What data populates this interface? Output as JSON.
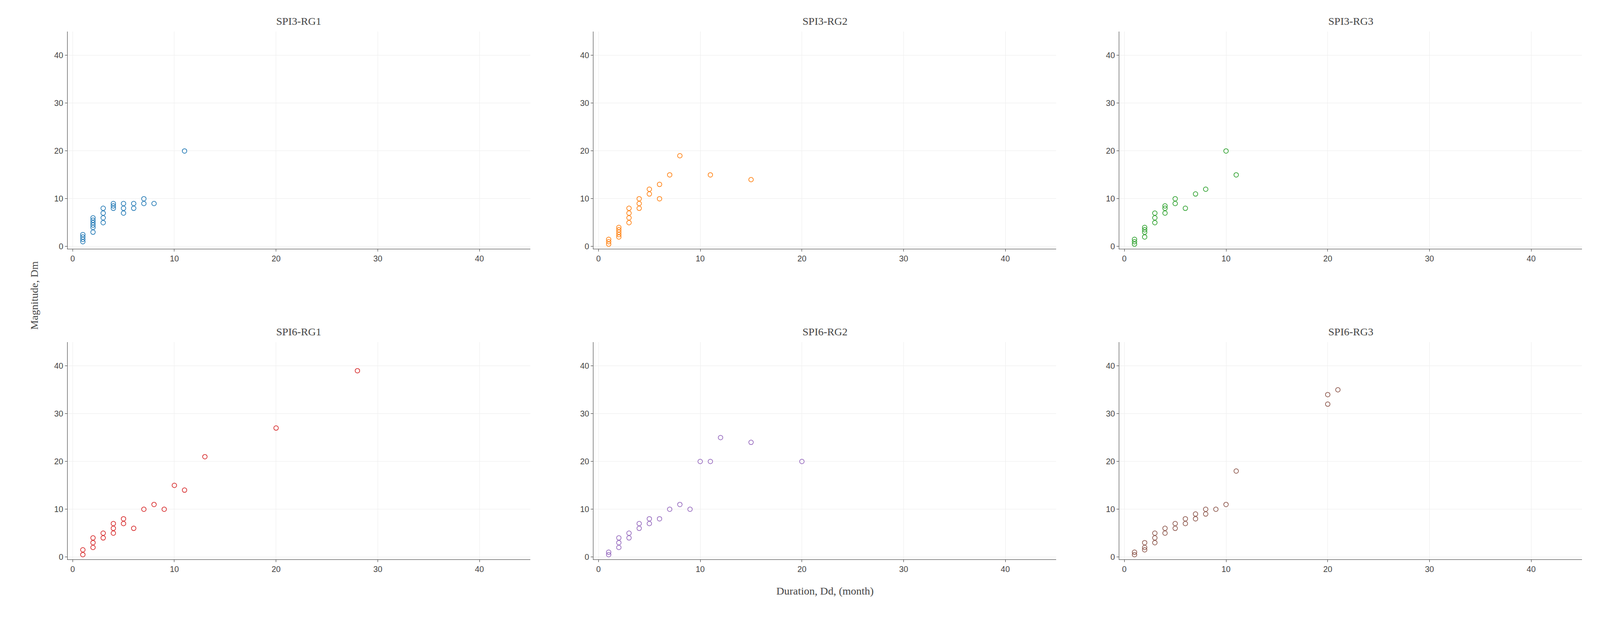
{
  "chart_data": [
    {
      "type": "scatter",
      "title": "SPI3-RG1",
      "x": [
        1,
        1,
        1,
        1,
        2,
        2,
        2,
        2,
        2,
        2,
        3,
        3,
        3,
        3,
        4,
        4,
        4,
        5,
        5,
        5,
        6,
        6,
        7,
        7,
        8,
        11
      ],
      "values": [
        1,
        1.5,
        2,
        2.5,
        3,
        4,
        4.5,
        5,
        5.5,
        6,
        5,
        6,
        7,
        8,
        8,
        8.5,
        9,
        7,
        8,
        9,
        8,
        9,
        9,
        10,
        9,
        20
      ],
      "xlim": [
        -0.5,
        45
      ],
      "ylim": [
        -0.5,
        45
      ],
      "xticks": [
        0,
        10,
        20,
        30,
        40
      ],
      "yticks": [
        0,
        10,
        20,
        30,
        40
      ],
      "marker": "circle-open",
      "grid": true
    },
    {
      "type": "scatter",
      "title": "SPI3-RG2",
      "x": [
        1,
        1,
        1,
        2,
        2,
        2,
        2,
        2,
        3,
        3,
        3,
        3,
        4,
        4,
        4,
        5,
        5,
        6,
        6,
        7,
        8,
        11,
        15
      ],
      "values": [
        0.5,
        1,
        1.5,
        2,
        2.5,
        3,
        3.5,
        4,
        5,
        6,
        7,
        8,
        8,
        9,
        10,
        11,
        12,
        10,
        13,
        15,
        19,
        15,
        14
      ],
      "xlim": [
        -0.5,
        45
      ],
      "ylim": [
        -0.5,
        45
      ],
      "xticks": [
        0,
        10,
        20,
        30,
        40
      ],
      "yticks": [
        0,
        10,
        20,
        30,
        40
      ],
      "marker": "circle-open",
      "grid": true
    },
    {
      "type": "scatter",
      "title": "SPI3-RG3",
      "x": [
        1,
        1,
        1,
        2,
        2,
        2,
        2,
        3,
        3,
        3,
        4,
        4,
        4,
        5,
        5,
        6,
        7,
        8,
        10,
        11
      ],
      "values": [
        0.5,
        1,
        1.5,
        2,
        3,
        3.5,
        4,
        5,
        6,
        7,
        7,
        8,
        8.5,
        9,
        10,
        8,
        11,
        12,
        20,
        15
      ],
      "xlim": [
        -0.5,
        45
      ],
      "ylim": [
        -0.5,
        45
      ],
      "xticks": [
        0,
        10,
        20,
        30,
        40
      ],
      "yticks": [
        0,
        10,
        20,
        30,
        40
      ],
      "marker": "circle-open",
      "grid": true
    },
    {
      "type": "scatter",
      "title": "SPI6-RG1",
      "x": [
        1,
        1,
        2,
        2,
        2,
        3,
        3,
        4,
        4,
        4,
        5,
        5,
        6,
        7,
        8,
        9,
        10,
        11,
        13,
        20,
        28
      ],
      "values": [
        0.5,
        1.5,
        2,
        3,
        4,
        4,
        5,
        5,
        6,
        7,
        7,
        8,
        6,
        10,
        11,
        10,
        15,
        14,
        21,
        27,
        39
      ],
      "xlim": [
        -0.5,
        45
      ],
      "ylim": [
        -0.5,
        45
      ],
      "xticks": [
        0,
        10,
        20,
        30,
        40
      ],
      "yticks": [
        0,
        10,
        20,
        30,
        40
      ],
      "marker": "circle-open",
      "grid": true
    },
    {
      "type": "scatter",
      "title": "SPI6-RG2",
      "x": [
        1,
        1,
        2,
        2,
        2,
        3,
        3,
        4,
        4,
        5,
        5,
        6,
        7,
        8,
        9,
        10,
        11,
        12,
        15,
        20
      ],
      "values": [
        0.5,
        1,
        2,
        3,
        4,
        4,
        5,
        6,
        7,
        7,
        8,
        8,
        10,
        11,
        10,
        20,
        20,
        25,
        24,
        20
      ],
      "xlim": [
        -0.5,
        45
      ],
      "ylim": [
        -0.5,
        45
      ],
      "xticks": [
        0,
        10,
        20,
        30,
        40
      ],
      "yticks": [
        0,
        10,
        20,
        30,
        40
      ],
      "marker": "circle-open",
      "grid": true
    },
    {
      "type": "scatter",
      "title": "SPI6-RG3",
      "x": [
        1,
        1,
        2,
        2,
        2,
        3,
        3,
        3,
        4,
        4,
        5,
        5,
        6,
        6,
        7,
        7,
        8,
        8,
        9,
        10,
        11,
        20,
        20,
        21
      ],
      "values": [
        0.5,
        1,
        1.5,
        2,
        3,
        3,
        4,
        5,
        5,
        6,
        6,
        7,
        7,
        8,
        8,
        9,
        9,
        10,
        10,
        11,
        18,
        32,
        34,
        35
      ],
      "xlim": [
        -0.5,
        45
      ],
      "ylim": [
        -0.5,
        45
      ],
      "xticks": [
        0,
        10,
        20,
        30,
        40
      ],
      "yticks": [
        0,
        10,
        20,
        30,
        40
      ],
      "marker": "circle-open",
      "grid": true
    }
  ],
  "x_label": "Duration, Dd, (month)",
  "y_label": "Magnitude, Dm"
}
